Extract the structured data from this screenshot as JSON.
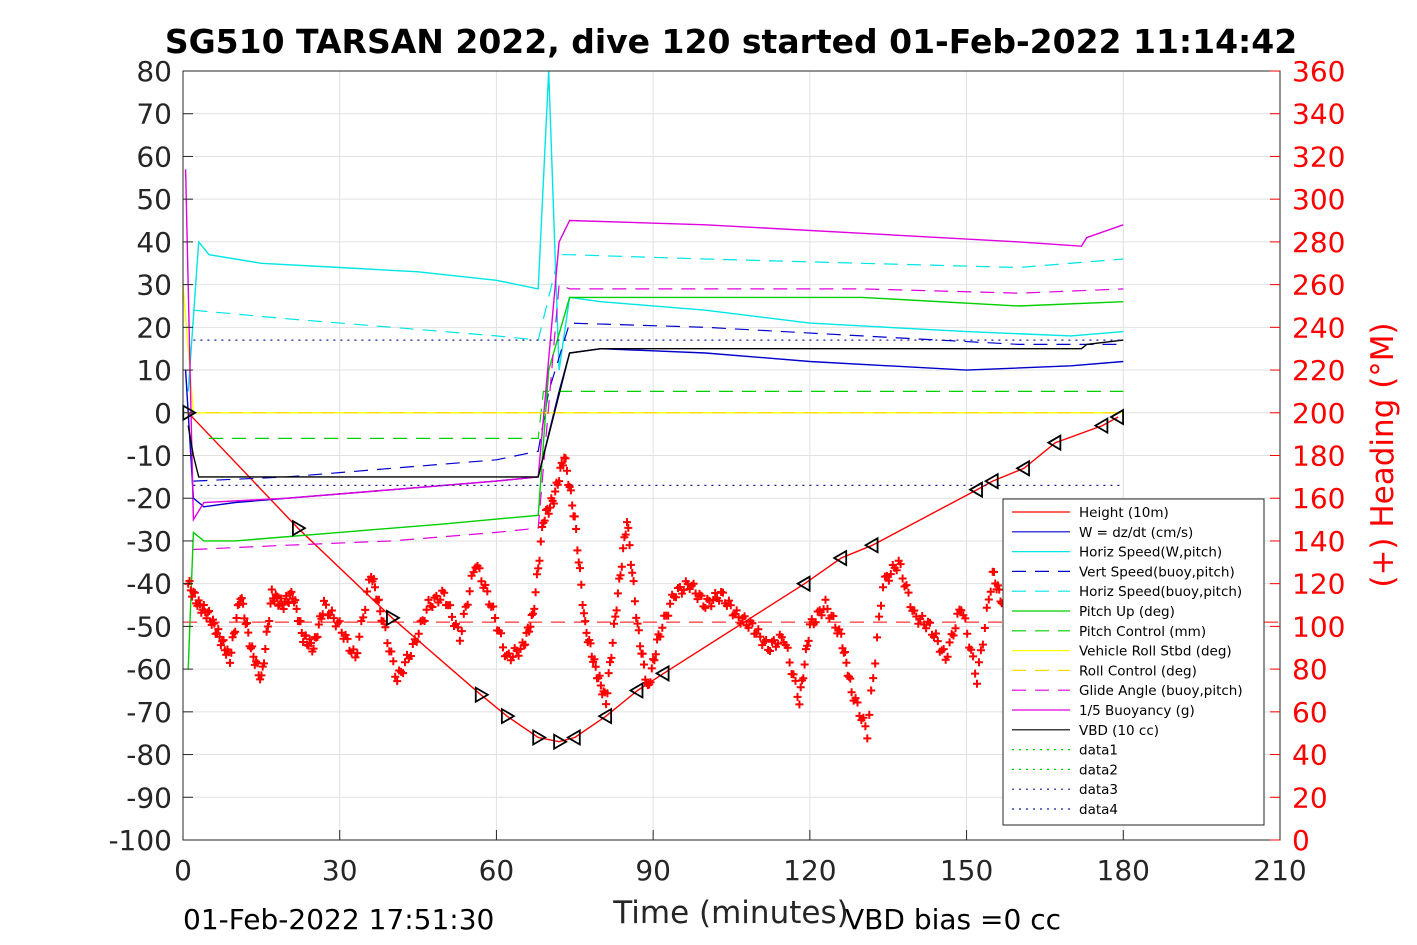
{
  "chart_data": {
    "type": "line",
    "title": "SG510 TARSAN 2022, dive 120 started 01-Feb-2022 11:14:42",
    "xlabel": "Time (minutes)",
    "ylabel_right": "(+) Heading (°M)",
    "footer_left": "01-Feb-2022 17:51:30",
    "footer_right": "VBD bias =0 cc",
    "xlim": [
      0,
      210
    ],
    "ylim": [
      -100,
      80
    ],
    "ylim_right": [
      0,
      360
    ],
    "x_ticks": [
      0,
      30,
      60,
      90,
      120,
      150,
      180,
      210
    ],
    "y_ticks": [
      -100,
      -90,
      -80,
      -70,
      -60,
      -50,
      -40,
      -30,
      -20,
      -10,
      0,
      10,
      20,
      30,
      40,
      50,
      60,
      70,
      80
    ],
    "y_ticks_right": [
      0,
      20,
      40,
      60,
      80,
      100,
      120,
      140,
      160,
      180,
      200,
      220,
      240,
      260,
      280,
      300,
      320,
      340,
      360
    ],
    "grid": true,
    "legend_position": "lower-right",
    "colors": {
      "red": "#ff0000",
      "blue": "#0000cd",
      "cyan": "#00e5e5",
      "green": "#00d000",
      "yellow": "#ffff00",
      "magenta": "#e000e0",
      "black": "#000000",
      "navy": "#1a1a9a"
    },
    "series": [
      {
        "name": "Height (10m)",
        "color": "#ff0000",
        "style": "solid",
        "x": [
          1,
          22,
          40,
          57,
          62,
          68,
          72,
          75,
          81,
          87,
          92,
          119,
          126,
          132,
          152,
          155,
          161,
          167,
          176,
          179
        ],
        "y": [
          0,
          -27,
          -48,
          -66,
          -71,
          -76,
          -77,
          -76,
          -71,
          -65,
          -61,
          -40,
          -34,
          -31,
          -18,
          -16,
          -13,
          -7,
          -3,
          -1
        ]
      },
      {
        "name": "W = dz/dt (cm/s)",
        "color": "#0000cd",
        "style": "solid",
        "x": [
          0.5,
          2,
          4,
          10,
          20,
          40,
          60,
          68,
          70,
          72,
          74,
          80,
          100,
          120,
          150,
          170,
          180
        ],
        "y": [
          10,
          -20,
          -22,
          -21,
          -20,
          -18,
          -16,
          -15,
          -5,
          5,
          14,
          15,
          14,
          12,
          10,
          11,
          12
        ]
      },
      {
        "name": "Horiz Speed(W,pitch)",
        "color": "#00e5e5",
        "style": "solid",
        "x": [
          1,
          3,
          5,
          15,
          30,
          45,
          60,
          68,
          70,
          72,
          74,
          80,
          100,
          120,
          150,
          170,
          180
        ],
        "y": [
          5,
          40,
          37,
          35,
          34,
          33,
          31,
          29,
          80,
          10,
          27,
          26,
          24,
          21,
          19,
          18,
          19
        ]
      },
      {
        "name": "Vert Speed(buoy,pitch)",
        "color": "#0000cd",
        "style": "dash",
        "x": [
          2,
          20,
          40,
          60,
          68,
          70,
          74,
          100,
          130,
          160,
          180
        ],
        "y": [
          -16,
          -15,
          -13,
          -11,
          -9,
          5,
          21,
          20,
          18,
          16,
          16
        ]
      },
      {
        "name": "Horiz Speed(buoy,pitch)",
        "color": "#00e5e5",
        "style": "dash",
        "x": [
          2,
          20,
          40,
          60,
          68,
          72,
          74,
          100,
          130,
          160,
          180
        ],
        "y": [
          24,
          22,
          20,
          18,
          17,
          37,
          37,
          36,
          35,
          34,
          36
        ]
      },
      {
        "name": "Pitch Up (deg)",
        "color": "#00d000",
        "style": "solid",
        "x": [
          1,
          2,
          4,
          10,
          30,
          50,
          68,
          70,
          74,
          100,
          130,
          160,
          180
        ],
        "y": [
          -60,
          -28,
          -30,
          -30,
          -28,
          -26,
          -24,
          10,
          27,
          27,
          27,
          25,
          26
        ]
      },
      {
        "name": "Pitch Control (mm)",
        "color": "#00d000",
        "style": "dash",
        "x": [
          5,
          68,
          69,
          80,
          180
        ],
        "y": [
          -6,
          -6,
          5,
          5,
          5
        ]
      },
      {
        "name": "Vehicle Roll Stbd (deg)",
        "color": "#ffff00",
        "style": "solid",
        "x": [
          0,
          2,
          4,
          10,
          40,
          60,
          70,
          80,
          100,
          130,
          160,
          180
        ],
        "y": [
          30,
          0,
          0,
          0,
          0,
          0,
          0,
          0,
          0,
          0,
          0,
          0
        ]
      },
      {
        "name": "Roll Control (deg)",
        "color": "#ffd700",
        "style": "dash",
        "x": [
          0,
          2,
          180
        ],
        "y": [
          0,
          0,
          0
        ]
      },
      {
        "name": "Glide Angle (buoy,pitch)",
        "color": "#e000e0",
        "style": "dash",
        "x": [
          2,
          20,
          40,
          60,
          68,
          72,
          74,
          100,
          130,
          160,
          180
        ],
        "y": [
          -32,
          -31,
          -30,
          -28,
          -27,
          30,
          29,
          29,
          29,
          28,
          29
        ]
      },
      {
        "name": "1/5 Buoyancy (g)",
        "color": "#e000e0",
        "style": "solid",
        "x": [
          0.5,
          2,
          4,
          20,
          40,
          60,
          68,
          72,
          74,
          100,
          130,
          160,
          172,
          173,
          180
        ],
        "y": [
          57,
          -25,
          -21,
          -20,
          -18,
          -16,
          -15,
          40,
          45,
          44,
          42,
          40,
          39,
          41,
          44
        ]
      },
      {
        "name": "VBD (10 cc)",
        "color": "#000000",
        "style": "solid",
        "x": [
          1,
          2,
          3,
          68,
          74,
          80,
          172,
          173,
          180
        ],
        "y": [
          -3,
          -10,
          -15,
          -15,
          14,
          15,
          15,
          16,
          17
        ]
      },
      {
        "name": "data1",
        "color": "#00d000",
        "style": "dot",
        "x": [],
        "y": []
      },
      {
        "name": "data2",
        "color": "#00d000",
        "style": "dot",
        "x": [],
        "y": []
      },
      {
        "name": "data3",
        "color": "#1a1a9a",
        "style": "dot",
        "x": [
          2,
          180
        ],
        "y": [
          -17,
          -17
        ]
      },
      {
        "name": "data4",
        "color": "#1a1a9a",
        "style": "dot",
        "x": [
          2,
          180
        ],
        "y": [
          17,
          17
        ]
      }
    ],
    "heading": {
      "name": "Heading",
      "axis": "right",
      "color": "#ff0000",
      "marker": "+",
      "x": [
        1,
        3,
        5,
        7,
        9,
        11,
        13,
        15,
        17,
        19,
        21,
        23,
        25,
        27,
        30,
        33,
        36,
        38,
        41,
        44,
        47,
        50,
        53,
        56,
        59,
        62,
        65,
        67,
        69,
        71,
        73,
        75,
        77,
        79,
        81,
        83,
        85,
        87,
        89,
        91,
        94,
        97,
        100,
        103,
        106,
        109,
        112,
        115,
        118,
        120,
        123,
        126,
        128,
        131,
        134,
        137,
        140,
        143,
        146,
        149,
        152,
        155,
        157
      ],
      "y": [
        120,
        110,
        105,
        95,
        85,
        115,
        90,
        75,
        115,
        110,
        115,
        95,
        90,
        110,
        100,
        85,
        125,
        105,
        75,
        90,
        110,
        115,
        95,
        130,
        110,
        85,
        90,
        105,
        150,
        160,
        180,
        150,
        100,
        80,
        65,
        110,
        150,
        100,
        70,
        95,
        115,
        120,
        110,
        115,
        105,
        100,
        90,
        95,
        65,
        100,
        110,
        95,
        70,
        50,
        120,
        130,
        105,
        100,
        85,
        110,
        75,
        125,
        110
      ]
    },
    "heading_reference": {
      "value": 102,
      "axis": "right",
      "style": "dash"
    },
    "annotations": {
      "height_markers": "triangle markers along Height trace"
    }
  }
}
